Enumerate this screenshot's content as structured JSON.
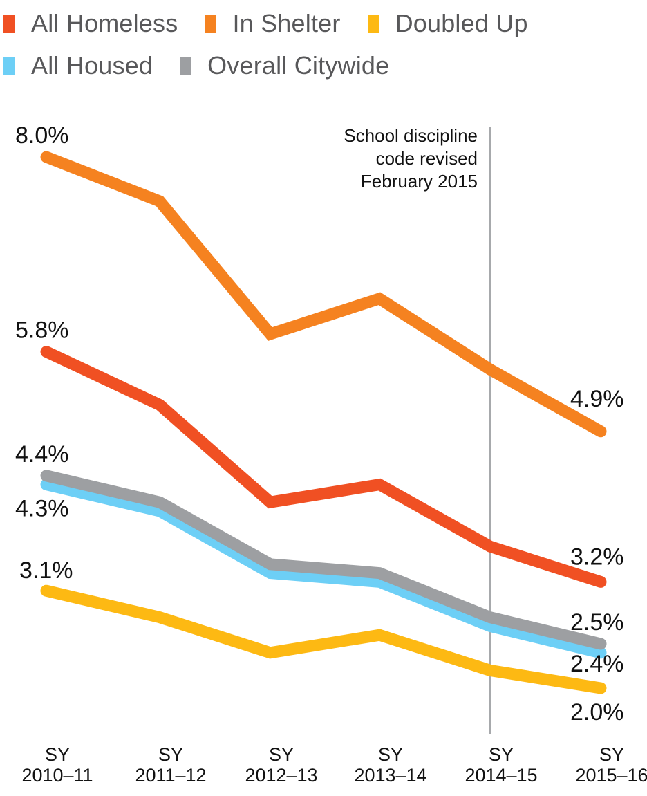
{
  "legend": {
    "items": [
      {
        "label": "All Homeless",
        "color": "#f05023"
      },
      {
        "label": "In Shelter",
        "color": "#f58220"
      },
      {
        "label": "Doubled Up",
        "color": "#fdb913"
      },
      {
        "label": "All Housed",
        "color": "#6dcff6"
      },
      {
        "label": "Overall Citywide",
        "color": "#9d9fa2"
      }
    ]
  },
  "chart_data": {
    "type": "line",
    "title": "",
    "xlabel": "",
    "ylabel": "",
    "categories": [
      [
        "SY",
        "2010–11"
      ],
      [
        "SY",
        "2011–12"
      ],
      [
        "SY",
        "2012–13"
      ],
      [
        "SY",
        "2013–14"
      ],
      [
        "SY",
        "2014–15"
      ],
      [
        "SY",
        "2015–16"
      ]
    ],
    "ylim": [
      0,
      9
    ],
    "grid": false,
    "legend_position": "top-left",
    "series": [
      {
        "name": "In Shelter",
        "color": "#f58220",
        "values": [
          8.0,
          7.5,
          6.0,
          6.4,
          5.6,
          4.9
        ],
        "start_label": "8.0%",
        "end_label": "4.9%"
      },
      {
        "name": "All Homeless",
        "color": "#f05023",
        "values": [
          5.8,
          5.2,
          4.1,
          4.3,
          3.6,
          3.2
        ],
        "start_label": "5.8%",
        "end_label": "3.2%"
      },
      {
        "name": "All Housed",
        "color": "#6dcff6",
        "values": [
          4.3,
          4.0,
          3.3,
          3.2,
          2.7,
          2.4
        ],
        "start_label": "4.3%",
        "end_label": "2.4%"
      },
      {
        "name": "Overall Citywide",
        "color": "#9d9fa2",
        "values": [
          4.4,
          4.1,
          3.4,
          3.3,
          2.8,
          2.5
        ],
        "start_label": "4.4%",
        "end_label": "2.5%"
      },
      {
        "name": "Doubled Up",
        "color": "#fdb913",
        "values": [
          3.1,
          2.8,
          2.4,
          2.6,
          2.2,
          2.0
        ],
        "start_label": "3.1%",
        "end_label": "2.0%"
      }
    ],
    "annotations": [
      {
        "type": "vline",
        "at_category": 4,
        "color": "#a7a9ac",
        "text": [
          "School discipline",
          "code revised",
          "February 2015"
        ]
      }
    ]
  }
}
